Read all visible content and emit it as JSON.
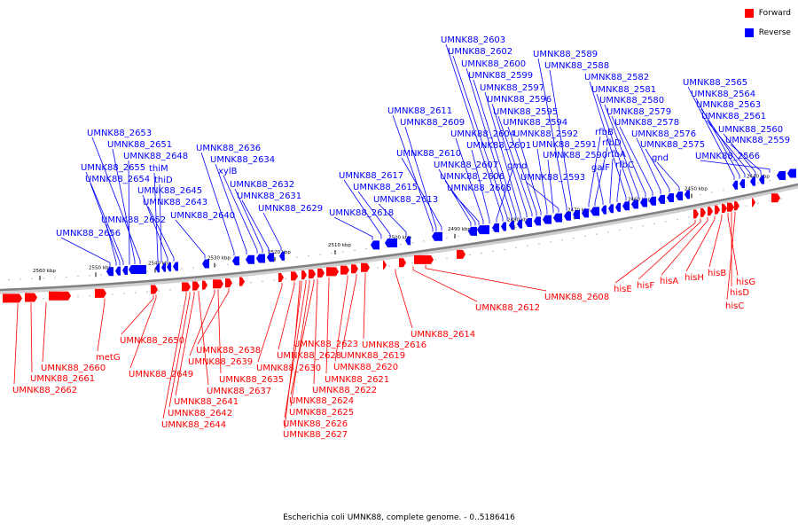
{
  "legend": [
    {
      "label": "Forward",
      "color": "#ff0000"
    },
    {
      "label": "Reverse",
      "color": "#0000ff"
    }
  ],
  "caption": "Escherichia coli UMNK88, complete genome. - 0..5186416",
  "colors": {
    "forward": "#ff0000",
    "reverse": "#0000ff",
    "axis": "#808080"
  },
  "ticks": [
    "2560 kbp",
    "2550 kbp",
    "2540 kbp",
    "2530 kbp",
    "2520 kbp",
    "2510 kbp",
    "2500 kbp",
    "2490 kbp",
    "2480 kbp",
    "2470 kbp",
    "2460 kbp",
    "2450 kbp",
    "2440 kbp"
  ],
  "forward_labels": [
    "UMNK88_2662",
    "UMNK88_2661",
    "UMNK88_2660",
    "metG",
    "UMNK88_2650",
    "UMNK88_2649",
    "UMNK88_2644",
    "UMNK88_2642",
    "UMNK88_2641",
    "UMNK88_2637",
    "UMNK88_2635",
    "UMNK88_2639",
    "UMNK88_2638",
    "UMNK88_2630",
    "UMNK88_2628",
    "UMNK88_2623",
    "UMNK88_2627",
    "UMNK88_2626",
    "UMNK88_2625",
    "UMNK88_2624",
    "UMNK88_2622",
    "UMNK88_2621",
    "UMNK88_2620",
    "UMNK88_2619",
    "UMNK88_2616",
    "UMNK88_2614",
    "UMNK88_2612",
    "UMNK88_2608",
    "hisE",
    "hisF",
    "hisA",
    "hisH",
    "hisB",
    "hisG",
    "hisD",
    "hisC"
  ],
  "reverse_labels": [
    "UMNK88_2656",
    "UMNK88_2652",
    "UMNK88_2654",
    "UMNK88_2655",
    "UMNK88_2648",
    "UMNK88_2651",
    "UMNK88_2653",
    "thiM",
    "thiD",
    "UMNK88_2645",
    "UMNK88_2643",
    "UMNK88_2640",
    "UMNK88_2636",
    "UMNK88_2634",
    "xylB",
    "UMNK88_2632",
    "UMNK88_2631",
    "UMNK88_2629",
    "UMNK88_2618",
    "UMNK88_2617",
    "UMNK88_2615",
    "UMNK88_2613",
    "UMNK88_2611",
    "UMNK88_2609",
    "UMNK88_2610",
    "UMNK88_2607",
    "UMNK88_2606",
    "UMNK88_2605",
    "UMNK88_2604",
    "UMNK88_2601",
    "gmd",
    "UMNK88_2603",
    "UMNK88_2602",
    "UMNK88_2600",
    "UMNK88_2599",
    "UMNK88_2597",
    "UMNK88_2596",
    "UMNK88_2595",
    "UMNK88_2594",
    "UMNK88_2592",
    "UMNK88_2591",
    "UMNK88_2590",
    "UMNK88_2593",
    "UMNK88_2589",
    "UMNK88_2588",
    "rfbB",
    "rfbD",
    "galF",
    "rfbA",
    "rfbC",
    "UMNK88_2582",
    "UMNK88_2581",
    "UMNK88_2580",
    "UMNK88_2579",
    "UMNK88_2578",
    "UMNK88_2576",
    "UMNK88_2575",
    "gnd",
    "UMNK88_2565",
    "UMNK88_2564",
    "UMNK88_2563",
    "UMNK88_2561",
    "UMNK88_2560",
    "UMNK88_2559",
    "UMNK88_2566"
  ]
}
